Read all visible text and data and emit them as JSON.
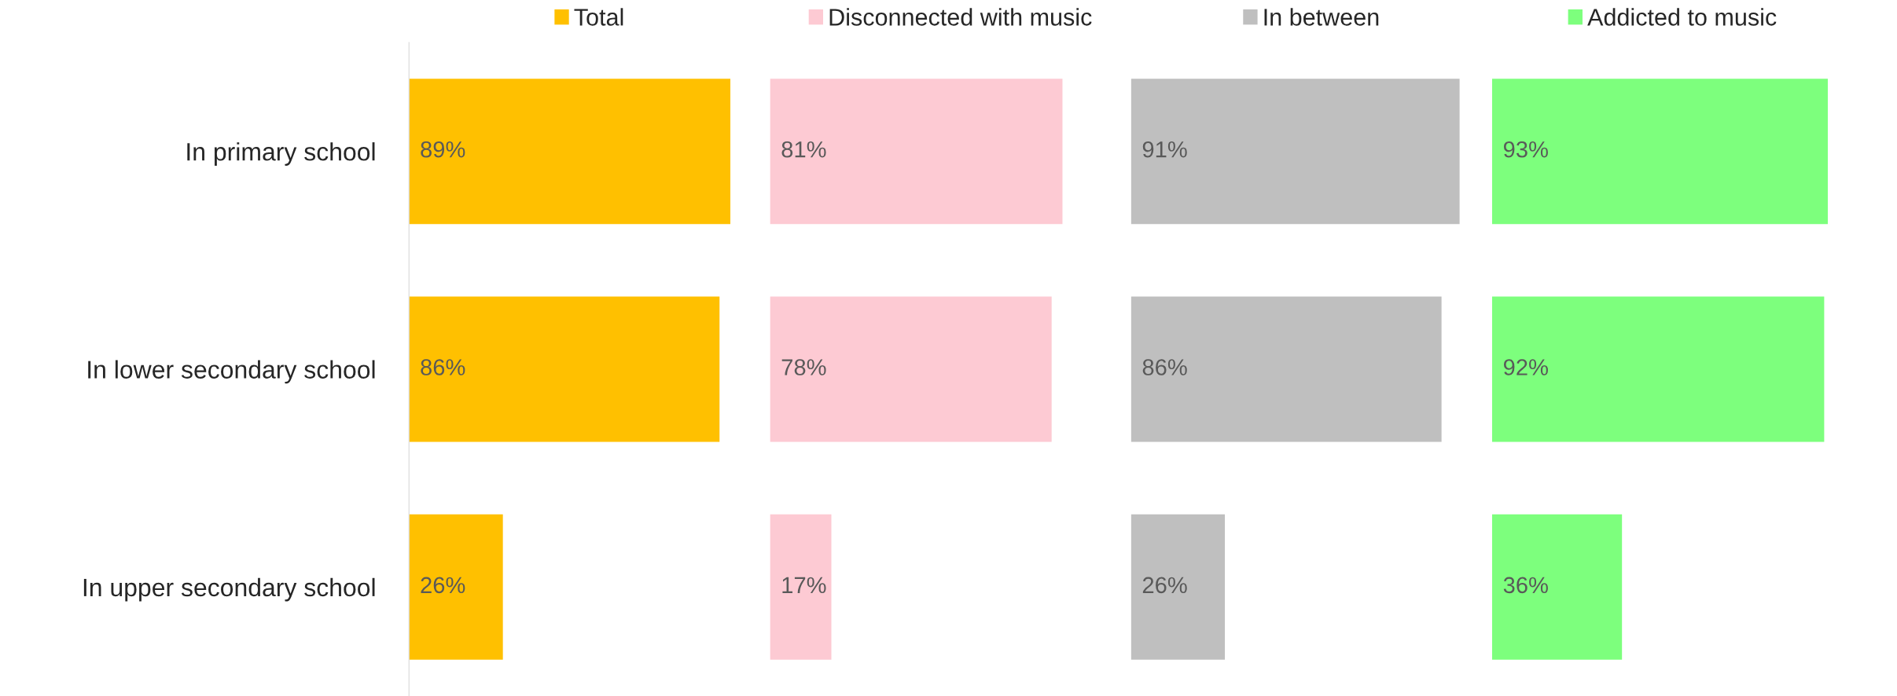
{
  "chart_data": [
    {
      "type": "bar",
      "orientation": "horizontal",
      "categories": [
        "In primary school",
        "In lower secondary school",
        "In upper secondary school"
      ],
      "legend": "top",
      "tick_labels": "y",
      "series": [
        {
          "name": "Total",
          "color": "#ffc000",
          "values": [
            89,
            86,
            26
          ],
          "value_labels": [
            "89%",
            "86%",
            "26%"
          ]
        }
      ]
    },
    {
      "type": "bar",
      "orientation": "horizontal",
      "categories": [
        null,
        null,
        null
      ],
      "legend": "top",
      "tick_labels": false,
      "series": [
        {
          "name": "Disconnected with music",
          "color": "#fdcad3",
          "values": [
            81,
            78,
            17
          ],
          "value_labels": [
            "81%",
            "78%",
            "17%"
          ]
        }
      ]
    },
    {
      "type": "bar",
      "orientation": "horizontal",
      "categories": [
        null,
        null,
        null
      ],
      "legend": "top",
      "tick_labels": false,
      "series": [
        {
          "name": "In between",
          "color": "#bfbfbf",
          "values": [
            91,
            86,
            26
          ],
          "value_labels": [
            "91%",
            "86%",
            "26%"
          ]
        }
      ]
    },
    {
      "type": "bar",
      "orientation": "horizontal",
      "categories": [
        null,
        null,
        null
      ],
      "legend": "top",
      "tick_labels": false,
      "series": [
        {
          "name": "Addicted to music",
          "color": "#7dff7d",
          "values": [
            93,
            92,
            36
          ],
          "value_labels": [
            "93%",
            "92%",
            "36%"
          ]
        }
      ]
    }
  ]
}
